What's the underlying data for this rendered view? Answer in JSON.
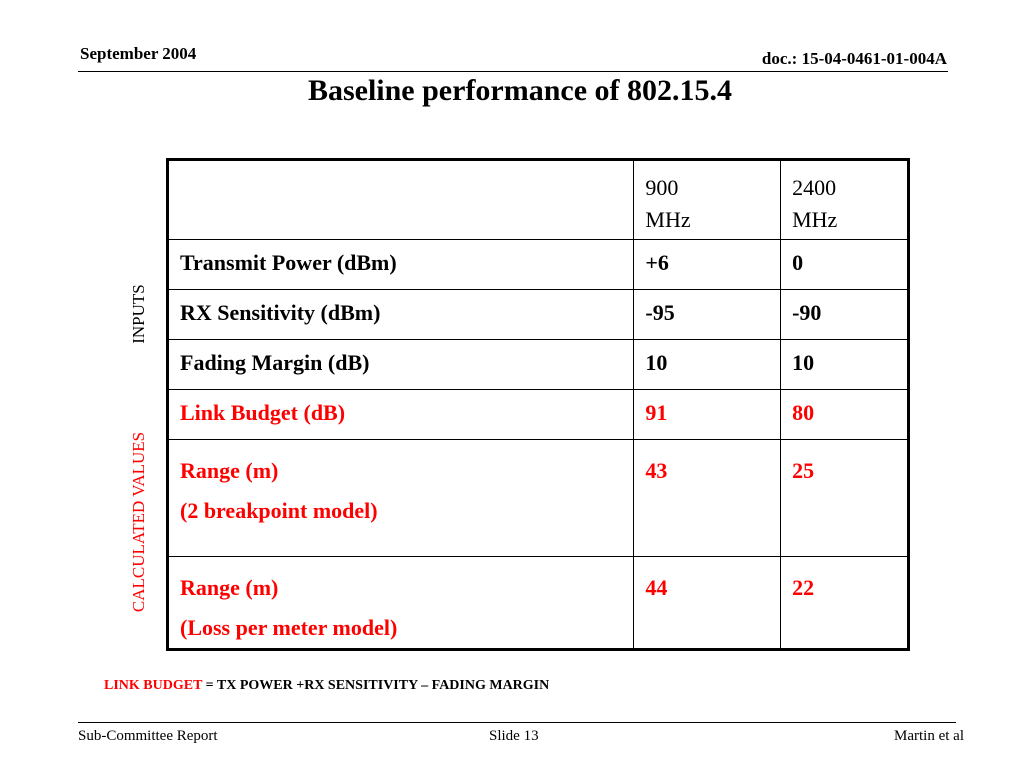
{
  "header": {
    "date": "September 2004",
    "doc": "doc.: 15-04-0461-01-004A"
  },
  "title": "Baseline performance of 802.15.4",
  "side_labels": {
    "inputs": "INPUTS",
    "calculated": "CALCULATED VALUES"
  },
  "table": {
    "columns": [
      "",
      "900 MHz",
      "2400 MHz"
    ],
    "col2_header": [
      "900",
      "MHz"
    ],
    "col3_header": [
      "2400",
      "MHz"
    ],
    "rows": [
      {
        "label": "Transmit Power (dBm)",
        "v900": "+6",
        "v2400": "0"
      },
      {
        "label": "RX Sensitivity (dBm)",
        "v900": "-95",
        "v2400": "-90"
      },
      {
        "label": "Fading Margin (dB)",
        "v900": "10",
        "v2400": "10"
      },
      {
        "label": "Link Budget (dB)",
        "v900": "91",
        "v2400": "80"
      },
      {
        "label": "Range (m)",
        "sublabel": "(2 breakpoint model)",
        "v900": "43",
        "v2400": "25"
      },
      {
        "label": "Range (m)",
        "sublabel": "(Loss per meter model)",
        "v900": "44",
        "v2400": "22"
      }
    ]
  },
  "note": {
    "term": "LINK BUDGET",
    "formula": " = TX POWER +RX SENSITIVITY – FADING MARGIN"
  },
  "footer": {
    "left": "Sub-Committee Report",
    "center": "Slide 13",
    "right": "Martin et al"
  },
  "colors": {
    "calculated": "#ff0000",
    "text": "#000000",
    "background": "#ffffff"
  }
}
